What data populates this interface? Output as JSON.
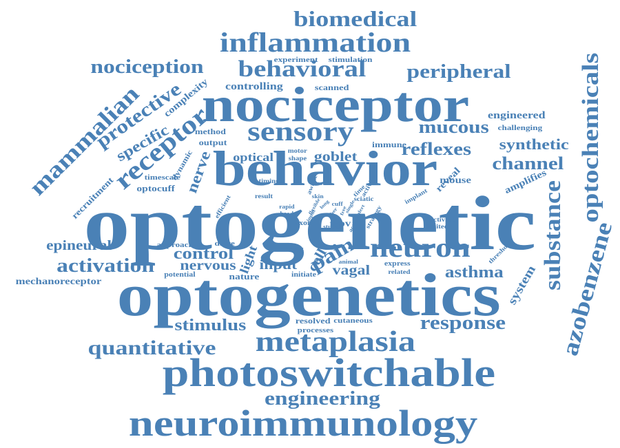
{
  "word_cloud": {
    "color": "#4a81b6",
    "words": [
      "optogenetic",
      "optogenetics",
      "nociceptor",
      "behavior",
      "photoswitchable",
      "neuroimmunology",
      "metaplasia",
      "inflammation",
      "sensory",
      "neuron",
      "behavioral",
      "biomedical",
      "optochemicals",
      "azobenzene",
      "substance",
      "receptor",
      "mammalian",
      "nociception",
      "peripheral",
      "protective",
      "quantitative",
      "activation",
      "response",
      "engineering",
      "mucous",
      "reflexes",
      "channel",
      "synthetic",
      "stimulus",
      "control",
      "pain",
      "specific",
      "epineural",
      "asthma",
      "mechanoreceptor",
      "input",
      "nerve",
      "vagal",
      "goblet",
      "system",
      "nervous",
      "light",
      "cell",
      "optical",
      "trpv",
      "complexity",
      "controlling",
      "engineered",
      "amplifies",
      "optocuff",
      "recruitment",
      "dynamic",
      "timescale",
      "method",
      "output",
      "immune",
      "reveal",
      "mouse",
      "scanned",
      "experiment",
      "stimulation",
      "challenging",
      "motor",
      "shape",
      "timing",
      "awake",
      "activity",
      "time",
      "implant",
      "activate",
      "limited",
      "threshold",
      "strategy",
      "efficient",
      "result",
      "skin",
      "cuff",
      "axon",
      "study",
      "action",
      "rapid",
      "head",
      "drive",
      "approach",
      "body",
      "express",
      "related",
      "animal",
      "initiate",
      "nature",
      "potential",
      "resolved",
      "processes",
      "cutaneous",
      "sciatic",
      "touch",
      "single",
      "free",
      "flexible",
      "long",
      "fiber",
      "alert",
      "input"
    ]
  }
}
